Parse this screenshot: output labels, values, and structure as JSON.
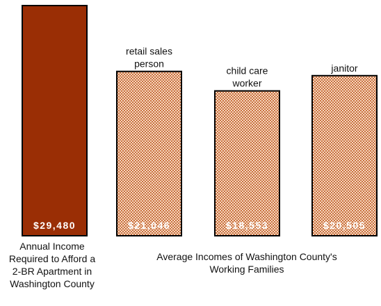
{
  "chart_data": {
    "type": "bar",
    "categories": [
      "",
      "retail sales person",
      "child care worker",
      "janitor"
    ],
    "values": [
      29480,
      21046,
      18553,
      20505
    ],
    "value_labels": [
      "$29,480",
      "$21,046",
      "$18,553",
      "$20,505"
    ],
    "category_label_lines": [
      [],
      [
        "retail sales",
        "person"
      ],
      [
        "child care",
        "worker"
      ],
      [
        "janitor"
      ]
    ],
    "ylim": [
      0,
      32000
    ],
    "grid": false,
    "legend": "none",
    "group_captions": {
      "required": "Annual Income Required to Afford a 2-BR Apartment in Washington County",
      "required_lines": [
        "Annual Income",
        "Required to Afford a",
        "2-BR Apartment in",
        "Washington County"
      ],
      "average": "Average Incomes of Washington County's Working Families",
      "average_lines": [
        "Average Incomes of Washington County's",
        "Working Families"
      ]
    },
    "colors": {
      "solid_bar": "#9a2e05",
      "hatched_bar_dots": "#c9703f",
      "hatched_bar_base": "#f6d8c0",
      "bar_outline": "#000000",
      "value_label": "#ffffff"
    }
  }
}
